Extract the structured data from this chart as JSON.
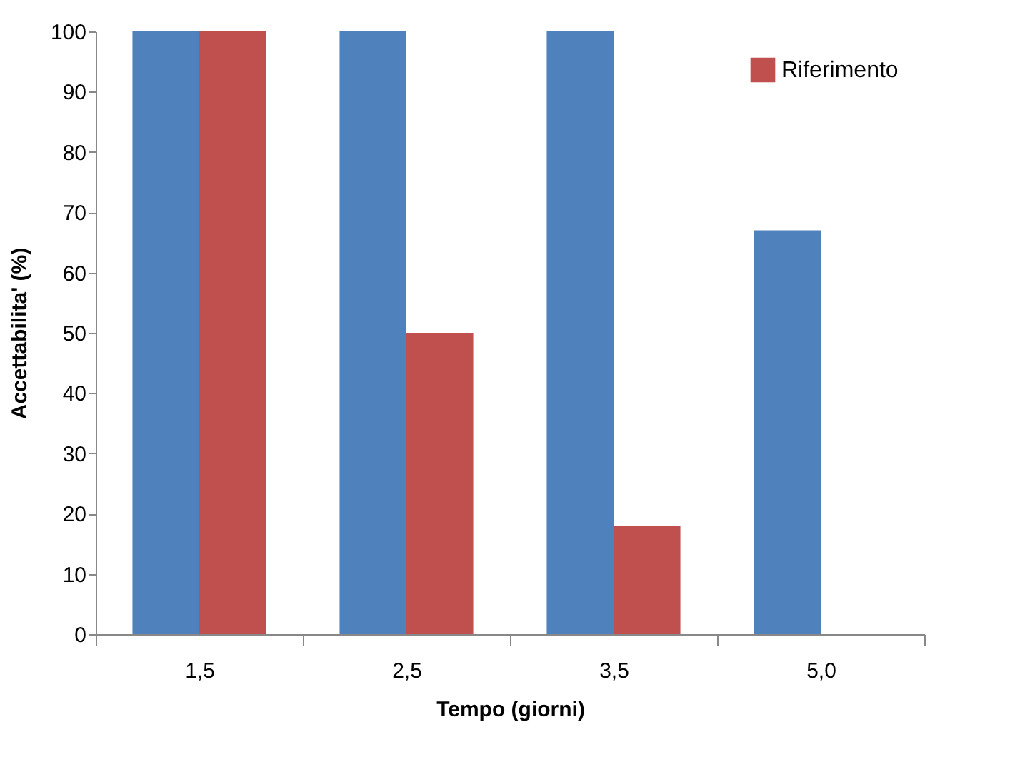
{
  "chart_data": {
    "type": "bar",
    "xlabel": "Tempo (giorni)",
    "ylabel": "Accettabilita' (%)",
    "categories": [
      "1,5",
      "2,5",
      "3,5",
      "5,0"
    ],
    "series": [
      {
        "color": "#4f81bd",
        "values": [
          100,
          100,
          100,
          67
        ]
      },
      {
        "name": "Riferimento",
        "color": "#c0504d",
        "values": [
          100,
          50,
          18,
          null
        ]
      }
    ],
    "ylim": [
      0,
      100
    ],
    "yticks": [
      0,
      10,
      20,
      30,
      40,
      50,
      60,
      70,
      80,
      90,
      100
    ],
    "grid": false,
    "legend": "top right"
  }
}
